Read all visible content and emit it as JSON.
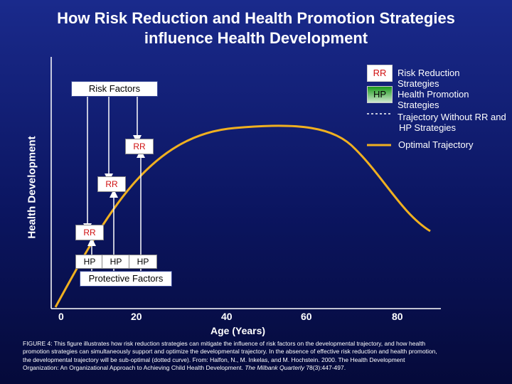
{
  "title_line1": "How Risk Reduction and Health Promotion Strategies",
  "title_line2": "influence Health Development",
  "y_axis_label": "Health Development",
  "x_axis_label": "Age (Years)",
  "x_ticks": [
    "0",
    "20",
    "40",
    "60",
    "80"
  ],
  "risk_factors_label": "Risk Factors",
  "protective_factors_label": "Protective Factors",
  "rr_label": "RR",
  "hp_label": "HP",
  "legend": {
    "rr_box": "RR",
    "rr_text": "Risk Reduction",
    "rr_text2": "Strategies",
    "hp_box": "HP",
    "hp_text": "Health Promotion",
    "hp_text2": "Strategies",
    "dotted_text": "Trajectory Without RR and",
    "dotted_text2": "HP Strategies",
    "optimal_text": "Optimal Trajectory"
  },
  "caption": {
    "l1": "FIGURE 4:  This figure illustrates how risk reduction strategies can mitigate the influence of risk factors on the developmental trajectory, and how health",
    "l2": "promotion strategies can simultaneously support and optimize the developmental trajectory.  In the absence of effective risk reduction and health promotion,",
    "l3": "the developmental trajectory will be sub-optimal (dotted curve).  From: Halfon, N., M. Inkelas, and M. Hochstein. 2000. The Health Development",
    "l4a": "Organization: An Organizational Approach to Achieving Child Health Development.",
    "l4b": " The Milbank Quarterly",
    "l4c": " 78(3):447-497."
  },
  "colors": {
    "background_top": "#1a2a8c",
    "background_bottom": "#050a3a",
    "optimal_trajectory": "#f0b020",
    "rr_text": "#d01010",
    "hp_gradient_top": "#1a9a1a",
    "arrow": "#ffffff"
  }
}
